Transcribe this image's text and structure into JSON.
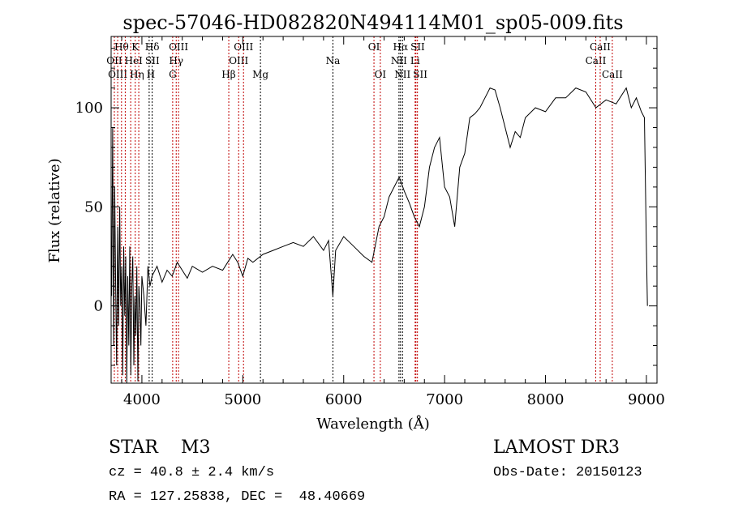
{
  "chart_data": {
    "type": "line",
    "title": "spec-57046-HD082820N494114M01_sp05-009.fits",
    "xlabel": "Wavelength (Å)",
    "ylabel": "Flux (relative)",
    "xlim": [
      3695,
      9105
    ],
    "ylim": [
      -39,
      136
    ],
    "xticks": [
      4000,
      5000,
      6000,
      7000,
      8000,
      9000
    ],
    "yticks": [
      0,
      50,
      100
    ],
    "series": [
      {
        "name": "spectrum",
        "x": [
          3700,
          3710,
          3720,
          3730,
          3740,
          3750,
          3760,
          3770,
          3780,
          3790,
          3800,
          3810,
          3820,
          3830,
          3840,
          3850,
          3860,
          3870,
          3880,
          3890,
          3900,
          3910,
          3920,
          3930,
          3940,
          3950,
          3960,
          3970,
          3980,
          3990,
          4000,
          4020,
          4040,
          4060,
          4080,
          4100,
          4150,
          4200,
          4250,
          4300,
          4350,
          4400,
          4450,
          4500,
          4600,
          4700,
          4800,
          4850,
          4900,
          4950,
          5000,
          5050,
          5100,
          5200,
          5300,
          5400,
          5500,
          5600,
          5700,
          5800,
          5850,
          5893,
          5920,
          6000,
          6100,
          6200,
          6280,
          6350,
          6400,
          6450,
          6500,
          6550,
          6600,
          6650,
          6700,
          6750,
          6800,
          6850,
          6900,
          6950,
          7000,
          7050,
          7100,
          7150,
          7200,
          7250,
          7300,
          7350,
          7400,
          7450,
          7500,
          7550,
          7600,
          7650,
          7700,
          7750,
          7800,
          7900,
          8000,
          8100,
          8200,
          8300,
          8400,
          8500,
          8600,
          8700,
          8800,
          8850,
          8900,
          8950,
          8980,
          9000,
          9010
        ],
        "y": [
          5,
          90,
          -20,
          60,
          10,
          -30,
          40,
          -10,
          50,
          0,
          20,
          -35,
          30,
          -5,
          25,
          -40,
          15,
          -20,
          30,
          -35,
          10,
          25,
          -30,
          5,
          -15,
          20,
          -38,
          10,
          0,
          -20,
          15,
          5,
          -10,
          20,
          10,
          15,
          20,
          12,
          18,
          15,
          22,
          18,
          14,
          20,
          17,
          20,
          18,
          22,
          26,
          22,
          15,
          24,
          22,
          26,
          28,
          30,
          32,
          30,
          35,
          28,
          33,
          5,
          28,
          35,
          30,
          25,
          22,
          40,
          45,
          55,
          60,
          65,
          58,
          52,
          45,
          40,
          50,
          70,
          80,
          85,
          60,
          55,
          40,
          70,
          77,
          95,
          97,
          100,
          105,
          110,
          109,
          100,
          90,
          80,
          88,
          85,
          95,
          100,
          98,
          105,
          105,
          110,
          108,
          100,
          104,
          102,
          110,
          100,
          105,
          98,
          95,
          30,
          0
        ]
      }
    ]
  },
  "spectral_lines": [
    {
      "label": "Hθ",
      "wl": 3798,
      "row": 0,
      "color": "#c00000"
    },
    {
      "label": "OII",
      "wl": 3727,
      "row": 1,
      "color": "#c00000"
    },
    {
      "label": "OIII",
      "wl": 3760,
      "row": 2,
      "color": "#c00000"
    },
    {
      "label": "HeI",
      "wl": 3889,
      "row": 1,
      "color": "#c00000"
    },
    {
      "label": "Hη",
      "wl": 3835,
      "row": 2,
      "color": "#c00000"
    },
    {
      "label": "K",
      "wl": 3934,
      "row": 0,
      "color": "#c00000"
    },
    {
      "label": "H",
      "wl": 3969,
      "row": 2,
      "color": "#c00000"
    },
    {
      "label": "SII",
      "wl": 4072,
      "row": 1,
      "color": "#000000"
    },
    {
      "label": "Hδ",
      "wl": 4102,
      "row": 0,
      "color": "#000000"
    },
    {
      "label": "G",
      "wl": 4305,
      "row": 2,
      "color": "#c00000"
    },
    {
      "label": "Hγ",
      "wl": 4340,
      "row": 1,
      "color": "#c00000"
    },
    {
      "label": "OIII",
      "wl": 4363,
      "row": 0,
      "color": "#c00000"
    },
    {
      "label": "Hβ",
      "wl": 4861,
      "row": 2,
      "color": "#c00000"
    },
    {
      "label": "OIII",
      "wl": 4959,
      "row": 1,
      "color": "#c00000"
    },
    {
      "label": "OIII",
      "wl": 5007,
      "row": 0,
      "color": "#c00000"
    },
    {
      "label": "Mg",
      "wl": 5175,
      "row": 2,
      "color": "#000000"
    },
    {
      "label": "Na",
      "wl": 5893,
      "row": 1,
      "color": "#000000"
    },
    {
      "label": "OI",
      "wl": 6300,
      "row": 0,
      "color": "#c00000"
    },
    {
      "label": "OI",
      "wl": 6363,
      "row": 2,
      "color": "#c00000"
    },
    {
      "label": "NII",
      "wl": 6548,
      "row": 1,
      "color": "#000000"
    },
    {
      "label": "Hα",
      "wl": 6563,
      "row": 0,
      "color": "#000000"
    },
    {
      "label": "NII",
      "wl": 6583,
      "row": 2,
      "color": "#000000"
    },
    {
      "label": "Li",
      "wl": 6708,
      "row": 1,
      "color": "#c00000"
    },
    {
      "label": "SII",
      "wl": 6716,
      "row": 0,
      "color": "#c00000"
    },
    {
      "label": "SII",
      "wl": 6731,
      "row": 2,
      "color": "#c00000"
    },
    {
      "label": "CaII",
      "wl": 8498,
      "row": 1,
      "color": "#c00000"
    },
    {
      "label": "CaII",
      "wl": 8542,
      "row": 0,
      "color": "#c00000"
    },
    {
      "label": "CaII",
      "wl": 8662,
      "row": 2,
      "color": "#c00000"
    }
  ],
  "info": {
    "obj_type": "STAR    M3",
    "cz": "cz = 40.8 ± 2.4 km/s",
    "radec": "RA = 127.25838, DEC =  48.40669",
    "survey": "LAMOST DR3",
    "obs_date": "Obs-Date: 20150123"
  }
}
